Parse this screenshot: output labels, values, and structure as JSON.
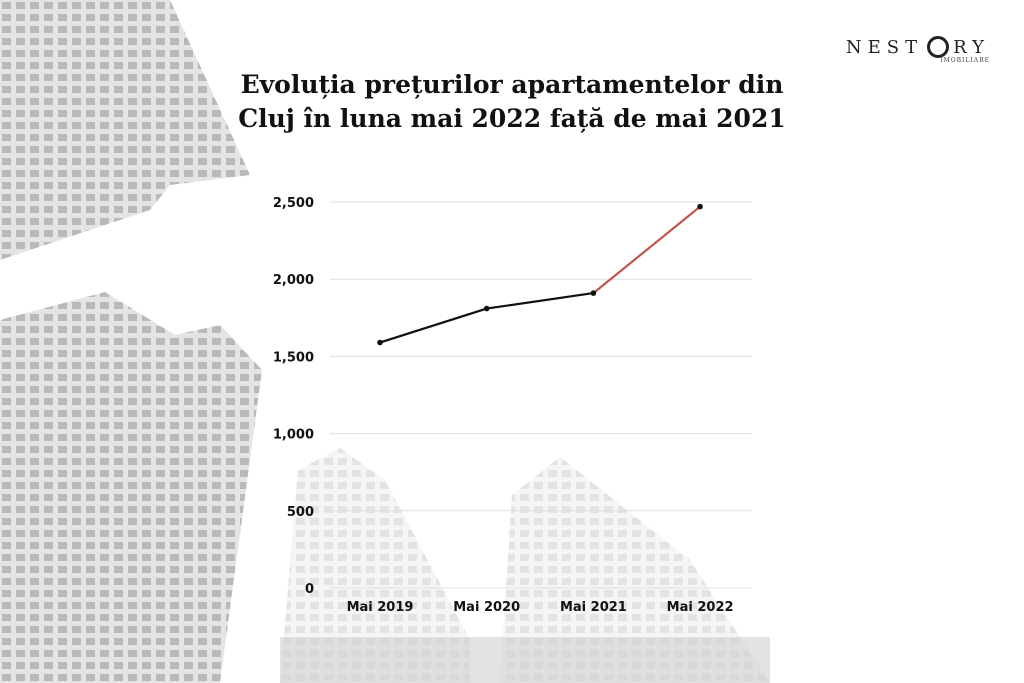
{
  "brand": {
    "name": "NESTORY",
    "subtitle": "IMOBILIARE"
  },
  "colors": {
    "line": "#111111",
    "highlight": "#c0574a",
    "grid": "#e0e0e0"
  },
  "chart_data": {
    "type": "line",
    "title": "Evoluția prețurilor apartamentelor din Cluj în luna mai 2022 față de mai 2021",
    "xlabel": "",
    "ylabel": "",
    "categories": [
      "Mai 2019",
      "Mai 2020",
      "Mai 2021",
      "Mai 2022"
    ],
    "series": [
      {
        "values": [
          1590,
          1810,
          1910,
          2470
        ]
      }
    ],
    "highlighted_segment": [
      2,
      3
    ],
    "ylim": [
      0,
      2500
    ],
    "yticks": [
      0,
      500,
      1000,
      1500,
      2000,
      2500
    ],
    "ytick_labels": [
      "0",
      "500",
      "1,000",
      "1,500",
      "2,000",
      "2,500"
    ],
    "grid": true,
    "legend": "none"
  }
}
